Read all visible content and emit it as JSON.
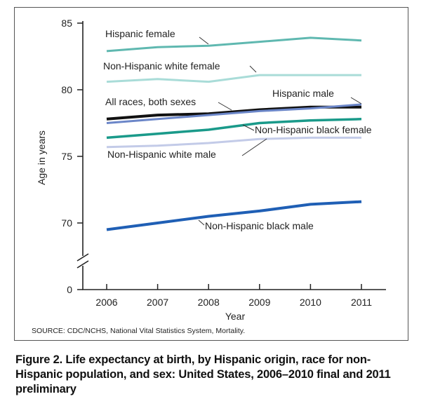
{
  "chart_data": {
    "type": "line",
    "x": [
      2006,
      2007,
      2008,
      2009,
      2010,
      2011
    ],
    "xlabel": "Year",
    "ylabel": "Age in years",
    "yticks": [
      "0",
      "70",
      "75",
      "80",
      "85"
    ],
    "ylim": [
      0,
      85
    ],
    "axis_break": true,
    "grid": false,
    "series": [
      {
        "name": "Hispanic female",
        "color": "#5fb8b0",
        "values": [
          82.9,
          83.2,
          83.3,
          83.6,
          83.9,
          83.7
        ]
      },
      {
        "name": "Non-Hispanic white female",
        "color": "#a9dcd8",
        "values": [
          80.6,
          80.8,
          80.6,
          81.1,
          81.1,
          81.1
        ]
      },
      {
        "name": "All races, both sexes",
        "color": "#111111",
        "values": [
          77.8,
          78.1,
          78.2,
          78.5,
          78.7,
          78.7
        ]
      },
      {
        "name": "Hispanic male",
        "color": "#6b86c8",
        "values": [
          77.5,
          77.8,
          78.1,
          78.4,
          78.6,
          78.9
        ]
      },
      {
        "name": "Non-Hispanic black female",
        "color": "#1a9a8a",
        "values": [
          76.4,
          76.7,
          77.0,
          77.5,
          77.7,
          77.8
        ]
      },
      {
        "name": "Non-Hispanic white male",
        "color": "#c3cbe8",
        "values": [
          75.7,
          75.8,
          76.0,
          76.3,
          76.4,
          76.4
        ]
      },
      {
        "name": "Non-Hispanic black male",
        "color": "#1f5fb5",
        "values": [
          69.5,
          70.0,
          70.5,
          70.9,
          71.4,
          71.6
        ]
      }
    ]
  },
  "source": "SOURCE: CDC/NCHS, National Vital Statistics System, Mortality.",
  "caption": "Figure 2. Life expectancy at birth, by Hispanic origin, race for non-Hispanic population, and sex: United States, 2006–2010 final and 2011 preliminary"
}
